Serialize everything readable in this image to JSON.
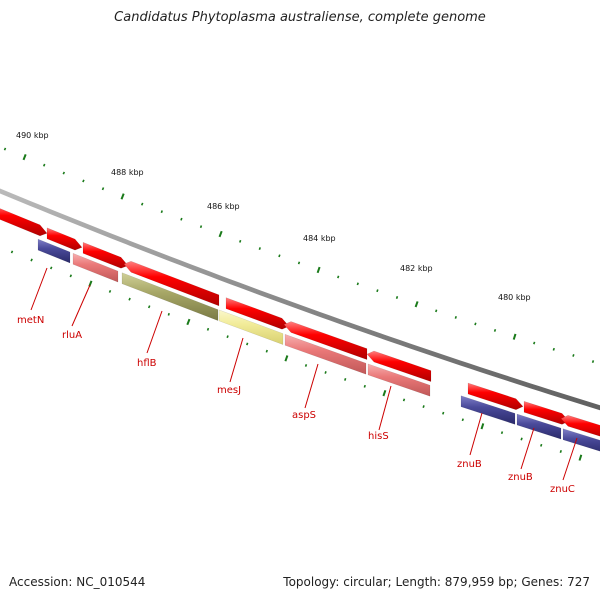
{
  "title": "Candidatus Phytoplasma australiense, complete genome",
  "accession_label": "Accession: NC_010544",
  "summary_label": "Topology: circular; Length: 879,959 bp; Genes: 727",
  "scale_labels": [
    "490 kbp",
    "488 kbp",
    "486 kbp",
    "484 kbp",
    "482 kbp",
    "480 kbp"
  ],
  "gene_labels": [
    "metN",
    "rluA",
    "hflB",
    "mesJ",
    "aspS",
    "hisS",
    "znuB",
    "znuB",
    "znuC"
  ],
  "colors": {
    "backbone": "#8a8a8a",
    "forward_gene": "#ff0000",
    "reverse_red": "#ef8080",
    "reverse_blue": "#4a4a9a",
    "reverse_olive": "#a8a868",
    "reverse_yellow": "#f2ec9a",
    "tick": "#1a7a1a",
    "label": "#cc0000"
  }
}
